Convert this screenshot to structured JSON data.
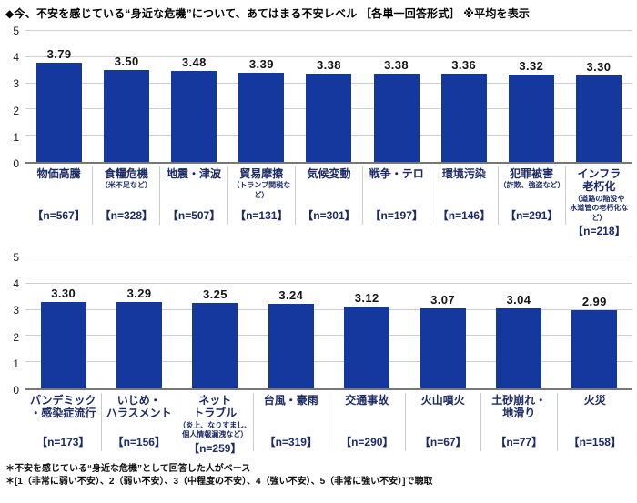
{
  "title": "◆今、不安を感じている“身近な危機”について、あてはまる不安レベル ［各単一回答形式］ ※平均を表示",
  "footnotes": {
    "line1": "＊不安を感じている“身近な危機”として回答した人がベース",
    "line2": "＊[1（非常に弱い不安）、2（弱い不安）、3（中程度の不安）、4（強い不安）、5（非常に強い不安）]で聴取"
  },
  "colors": {
    "bar": "#14389e",
    "category_label": "#1b2a66",
    "grid": "#cfcfcf",
    "axis": "#777777",
    "value_label": "#141414"
  },
  "chart_data": [
    {
      "type": "bar",
      "title": "不安レベル平均（上段）",
      "xlabel": "",
      "ylabel": "",
      "ylim": [
        0,
        5
      ],
      "yticks": [
        5,
        4,
        3,
        2,
        1,
        0
      ],
      "grid": true,
      "legend": "none",
      "categories": [
        "物価高騰",
        "食糧危機",
        "地震・津波",
        "貿易摩擦",
        "気候変動",
        "戦争・テロ",
        "環境汚染",
        "犯罪被害",
        "インフラ\n老朽化"
      ],
      "sublabels": [
        "",
        "（米不足など）",
        "",
        "（トランプ関税など）",
        "",
        "",
        "",
        "（詐欺、強盗など）",
        "（道路の陥没や\n水道管の老朽化など）"
      ],
      "n_labels": [
        "【n=567】",
        "【n=328】",
        "【n=507】",
        "【n=131】",
        "【n=301】",
        "【n=197】",
        "【n=146】",
        "【n=291】",
        "【n=218】"
      ],
      "values": [
        3.79,
        3.5,
        3.48,
        3.39,
        3.38,
        3.38,
        3.36,
        3.32,
        3.3
      ]
    },
    {
      "type": "bar",
      "title": "不安レベル平均（下段）",
      "xlabel": "",
      "ylabel": "",
      "ylim": [
        0,
        5
      ],
      "yticks": [
        5,
        4,
        3,
        2,
        1,
        0
      ],
      "grid": true,
      "legend": "none",
      "categories": [
        "パンデミック\n・感染症流行",
        "いじめ・\nハラスメント",
        "ネット\nトラブル",
        "台風・豪雨",
        "交通事故",
        "火山噴火",
        "土砂崩れ・\n地滑り",
        "火災"
      ],
      "sublabels": [
        "",
        "",
        "（炎上、なりすまし、\n個人情報漏洩など）",
        "",
        "",
        "",
        "",
        ""
      ],
      "n_labels": [
        "【n=173】",
        "【n=156】",
        "【n=259】",
        "【n=319】",
        "【n=290】",
        "【n=67】",
        "【n=77】",
        "【n=158】"
      ],
      "values": [
        3.3,
        3.29,
        3.25,
        3.24,
        3.12,
        3.07,
        3.04,
        2.99
      ]
    }
  ]
}
